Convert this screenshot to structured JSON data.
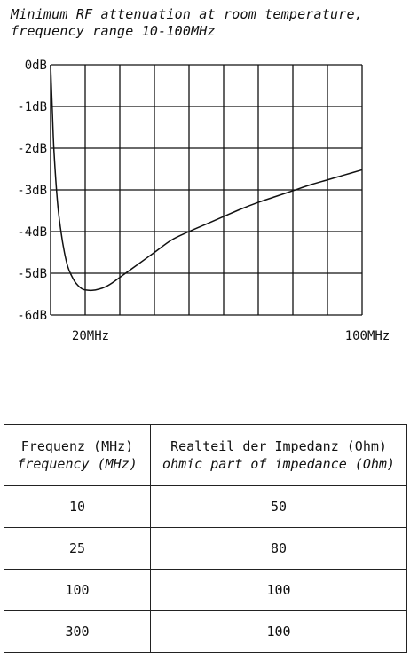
{
  "chart_data": {
    "type": "line",
    "title_lines": [
      "Minimum RF attenuation at room temperature,",
      "frequency range 10-100MHz"
    ],
    "xlabel": "",
    "ylabel": "",
    "xlim": [
      10,
      100
    ],
    "ylim": [
      -6,
      0
    ],
    "x_tick_labels": [
      {
        "x": 20,
        "label": "20MHz"
      },
      {
        "x": 100,
        "label": "100MHz"
      }
    ],
    "y_ticks": [
      0,
      -1,
      -2,
      -3,
      -4,
      -5,
      -6
    ],
    "y_tick_labels": [
      "0dB",
      "-1dB",
      "-2dB",
      "-3dB",
      "-4dB",
      "-5dB",
      "-6dB"
    ],
    "grid": true,
    "x_gridlines": [
      20,
      30,
      40,
      50,
      60,
      70,
      80,
      90,
      100
    ],
    "series": [
      {
        "x": [
          10,
          10.5,
          11,
          12,
          13,
          14,
          15,
          16,
          17,
          18,
          19,
          20,
          22,
          24,
          26,
          28,
          30,
          35,
          40,
          45,
          50,
          55,
          60,
          65,
          70,
          75,
          80,
          85,
          90,
          95,
          100
        ],
        "y": [
          0,
          -1.1,
          -2.1,
          -3.3,
          -4.0,
          -4.5,
          -4.85,
          -5.05,
          -5.2,
          -5.3,
          -5.37,
          -5.4,
          -5.41,
          -5.38,
          -5.32,
          -5.22,
          -5.1,
          -4.8,
          -4.5,
          -4.2,
          -4.0,
          -3.82,
          -3.64,
          -3.46,
          -3.3,
          -3.16,
          -3.02,
          -2.88,
          -2.76,
          -2.64,
          -2.52
        ]
      }
    ]
  },
  "table": {
    "header": {
      "col1_de": "Frequenz (MHz)",
      "col1_en": "frequency (MHz)",
      "col2_de": "Realteil der Impedanz (Ohm)",
      "col2_en": "ohmic part of impedance (Ohm)"
    },
    "rows": [
      {
        "frequency": "10",
        "impedance": "50"
      },
      {
        "frequency": "25",
        "impedance": "80"
      },
      {
        "frequency": "100",
        "impedance": "100"
      },
      {
        "frequency": "300",
        "impedance": "100"
      }
    ]
  }
}
